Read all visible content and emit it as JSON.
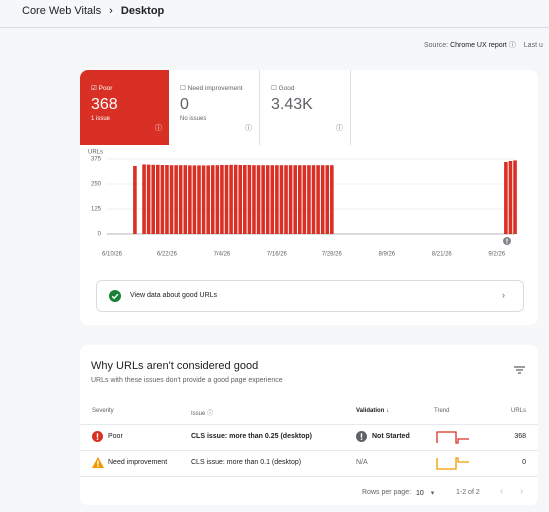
{
  "header": {
    "breadcrumb": [
      "Core Web Vitals",
      "Desktop"
    ],
    "source_label": "Source:",
    "source": "Chrome UX report",
    "last": "Last u"
  },
  "tiles": [
    {
      "label": "Poor",
      "value": "368",
      "note": "1 issue"
    },
    {
      "label": "Need improvement",
      "value": "0",
      "note": "No issues"
    },
    {
      "label": "Good",
      "value": "3.43K"
    }
  ],
  "chart": {
    "type": "bar",
    "y_label": "URLs",
    "color": "#d93025",
    "categories": [
      "6/10/26",
      null,
      null,
      null,
      null,
      null,
      null,
      null,
      null,
      null,
      null,
      null,
      "6/22/26",
      null,
      null,
      null,
      null,
      null,
      null,
      null,
      null,
      null,
      null,
      null,
      "7/4/26",
      null,
      null,
      null,
      null,
      null,
      null,
      null,
      null,
      null,
      null,
      null,
      "7/16/26",
      null,
      null,
      null,
      null,
      null,
      null,
      null,
      null,
      null,
      null,
      null,
      "7/28/26",
      null,
      null,
      null,
      null,
      null,
      null,
      null,
      null,
      null,
      null,
      null,
      "8/9/26",
      null,
      null,
      null,
      null,
      null,
      null,
      null,
      null,
      null,
      null,
      null,
      "8/21/26",
      null,
      null,
      null,
      null,
      null,
      null,
      null,
      null,
      null,
      null,
      null,
      "9/2/26",
      null,
      null,
      null,
      null
    ],
    "values": [
      null,
      null,
      null,
      null,
      null,
      340,
      null,
      348,
      347,
      346,
      346,
      345,
      345,
      344,
      344,
      344,
      344,
      343,
      343,
      343,
      343,
      343,
      344,
      344,
      345,
      345,
      346,
      346,
      345,
      345,
      345,
      344,
      344,
      344,
      344,
      344,
      344,
      344,
      344,
      344,
      344,
      344,
      344,
      344,
      344,
      344,
      344,
      344,
      344,
      null,
      null,
      null,
      null,
      null,
      null,
      null,
      null,
      null,
      null,
      null,
      null,
      null,
      null,
      null,
      null,
      null,
      null,
      null,
      null,
      null,
      null,
      null,
      null,
      null,
      null,
      null,
      null,
      null,
      null,
      null,
      null,
      null,
      null,
      null,
      null,
      null,
      360,
      365,
      368
    ],
    "ylim": [
      0,
      375
    ],
    "yticks": [
      0,
      125,
      250,
      375
    ],
    "grid": true
  },
  "good_urls_button": "View data about good URLs",
  "issues": {
    "title": "Why URLs aren't considered good",
    "subtitle": "URLs with these issues don't provide a good page experience",
    "columns": [
      "Severity",
      "Issue",
      "Validation",
      "Trend",
      "URLs"
    ],
    "rows": [
      {
        "severity": "Poor",
        "issue": "CLS issue: more than 0.25 (desktop)",
        "validation": "Not Started",
        "urls": "368"
      },
      {
        "severity": "Need improvement",
        "issue": "CLS issue: more than 0.1 (desktop)",
        "validation": "N/A",
        "urls": "0"
      }
    ],
    "rows_per_page_label": "Rows per page:",
    "rows_per_page": "10",
    "range": "1-2 of 2"
  }
}
